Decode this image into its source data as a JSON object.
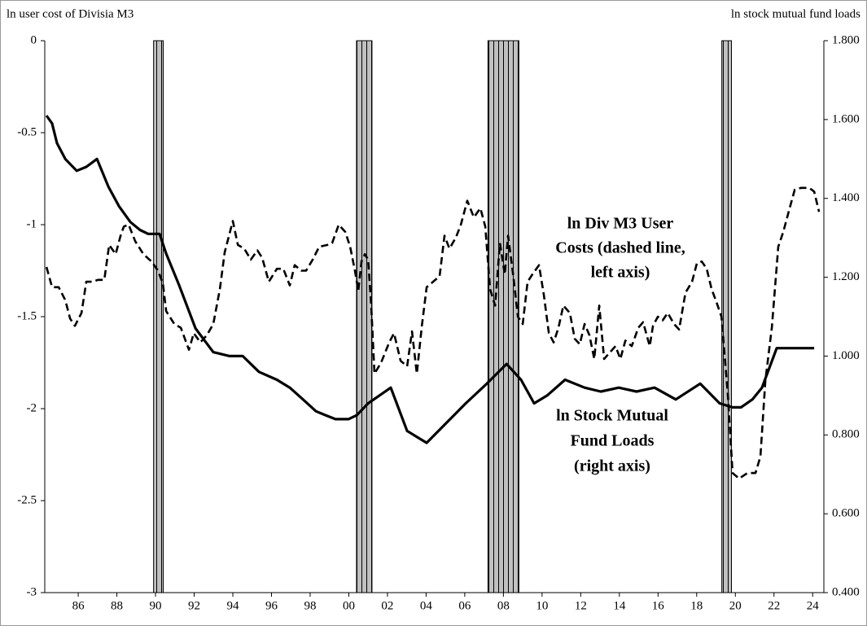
{
  "chart_data": {
    "type": "line",
    "y_label": "ln user cost of Divisia M3",
    "y2_label": "ln stock mutual fund loads",
    "xlim": [
      1984.27,
      2024.58
    ],
    "xticks": [
      {
        "value": 1986,
        "label": "86"
      },
      {
        "value": 1988,
        "label": "88"
      },
      {
        "value": 1990,
        "label": "90"
      },
      {
        "value": 1992,
        "label": "92"
      },
      {
        "value": 1994,
        "label": "94"
      },
      {
        "value": 1996,
        "label": "96"
      },
      {
        "value": 1998,
        "label": "98"
      },
      {
        "value": 2000,
        "label": "00"
      },
      {
        "value": 2002,
        "label": "02"
      },
      {
        "value": 2004,
        "label": "04"
      },
      {
        "value": 2006,
        "label": "06"
      },
      {
        "value": 2008,
        "label": "08"
      },
      {
        "value": 2010,
        "label": "10"
      },
      {
        "value": 2012,
        "label": "12"
      },
      {
        "value": 2014,
        "label": "14"
      },
      {
        "value": 2016,
        "label": "16"
      },
      {
        "value": 2018,
        "label": "18"
      },
      {
        "value": 2020,
        "label": "20"
      },
      {
        "value": 2022,
        "label": "22"
      },
      {
        "value": 2024,
        "label": "24"
      }
    ],
    "ylim": [
      -3,
      0
    ],
    "yticks": [
      0,
      -0.5,
      -1,
      -1.5,
      -2,
      -2.5,
      -3
    ],
    "y2lim": [
      0.4,
      1.8
    ],
    "y2ticks": [
      {
        "value": 1.8,
        "label": "1.800"
      },
      {
        "value": 1.6,
        "label": "1.600"
      },
      {
        "value": 1.4,
        "label": "1.400"
      },
      {
        "value": 1.2,
        "label": "1.200"
      },
      {
        "value": 1.0,
        "label": "1.000"
      },
      {
        "value": 0.8,
        "label": "0.800"
      },
      {
        "value": 0.6,
        "label": "0.600"
      },
      {
        "value": 0.4,
        "label": "0.400"
      }
    ],
    "shaded_periods": [
      [
        1989.9,
        1990.4
      ],
      [
        2000.4,
        2001.2
      ],
      [
        2007.2,
        2008.8
      ],
      [
        2019.3,
        2019.8
      ]
    ],
    "shade_color": "#c0c0c0",
    "series": [
      {
        "color": "#000000",
        "style": "dashed",
        "x": [
          1984.36,
          1984.65,
          1984.99,
          1985.33,
          1985.58,
          1985.83,
          1986.17,
          1986.42,
          1986.76,
          1987.01,
          1987.35,
          1987.6,
          1987.94,
          1988.19,
          1988.36,
          1988.61,
          1988.95,
          1989.37,
          1989.79,
          1990.13,
          1990.38,
          1990.55,
          1990.97,
          1991.31,
          1991.73,
          1991.98,
          1992.32,
          1992.66,
          1992.99,
          1993.33,
          1993.58,
          1994,
          1994.26,
          1994.59,
          1994.93,
          1995.27,
          1995.52,
          1995.86,
          1996.28,
          1996.61,
          1996.95,
          1997.2,
          1997.54,
          1997.79,
          1998.13,
          1998.47,
          1998.89,
          1999.14,
          1999.48,
          1999.82,
          2000.07,
          2000.32,
          2000.49,
          2000.66,
          2000.83,
          2001,
          2001.16,
          2001.33,
          2001.67,
          2002.09,
          2002.34,
          2002.68,
          2003.02,
          2003.27,
          2003.52,
          2003.78,
          2004.03,
          2004.36,
          2004.7,
          2004.95,
          2005.21,
          2005.54,
          2005.8,
          2006.13,
          2006.47,
          2006.81,
          2007.06,
          2007.31,
          2007.57,
          2007.82,
          2008.07,
          2008.24,
          2008.49,
          2008.75,
          2009,
          2009.25,
          2009.5,
          2009.84,
          2010.09,
          2010.35,
          2010.6,
          2010.85,
          2011.1,
          2011.44,
          2011.69,
          2011.95,
          2012.2,
          2012.45,
          2012.7,
          2012.96,
          2013.21,
          2013.46,
          2013.8,
          2014.05,
          2014.31,
          2014.64,
          2014.98,
          2015.23,
          2015.57,
          2015.74,
          2015.99,
          2016.24,
          2016.5,
          2016.83,
          2017.09,
          2017.42,
          2017.76,
          2018.01,
          2018.26,
          2018.52,
          2018.77,
          2019.02,
          2019.28,
          2019.61,
          2019.86,
          2020.2,
          2020.62,
          2021.04,
          2021.3,
          2021.55,
          2021.89,
          2022.22,
          2022.48,
          2022.81,
          2023.07,
          2023.4,
          2023.82,
          2024.08,
          2024.33
        ],
        "values": [
          -1.23,
          -1.34,
          -1.34,
          -1.41,
          -1.51,
          -1.55,
          -1.48,
          -1.31,
          -1.31,
          -1.3,
          -1.3,
          -1.11,
          -1.16,
          -1.06,
          -1.01,
          -1.0,
          -1.09,
          -1.16,
          -1.2,
          -1.25,
          -1.32,
          -1.47,
          -1.54,
          -1.56,
          -1.68,
          -1.59,
          -1.64,
          -1.6,
          -1.54,
          -1.35,
          -1.15,
          -0.98,
          -1.11,
          -1.13,
          -1.19,
          -1.14,
          -1.18,
          -1.31,
          -1.24,
          -1.24,
          -1.33,
          -1.22,
          -1.25,
          -1.25,
          -1.19,
          -1.12,
          -1.11,
          -1.1,
          -1.0,
          -1.04,
          -1.12,
          -1.25,
          -1.36,
          -1.2,
          -1.16,
          -1.19,
          -1.44,
          -1.81,
          -1.75,
          -1.64,
          -1.59,
          -1.74,
          -1.77,
          -1.58,
          -1.81,
          -1.55,
          -1.34,
          -1.31,
          -1.28,
          -1.06,
          -1.13,
          -1.07,
          -1.0,
          -0.87,
          -0.96,
          -0.91,
          -1.01,
          -1.35,
          -1.44,
          -1.1,
          -1.27,
          -1.06,
          -1.26,
          -1.5,
          -1.54,
          -1.31,
          -1.27,
          -1.22,
          -1.38,
          -1.59,
          -1.64,
          -1.56,
          -1.44,
          -1.48,
          -1.62,
          -1.65,
          -1.54,
          -1.6,
          -1.73,
          -1.44,
          -1.73,
          -1.7,
          -1.66,
          -1.73,
          -1.63,
          -1.66,
          -1.56,
          -1.53,
          -1.66,
          -1.55,
          -1.5,
          -1.52,
          -1.48,
          -1.54,
          -1.57,
          -1.37,
          -1.31,
          -1.21,
          -1.2,
          -1.24,
          -1.35,
          -1.42,
          -1.5,
          -1.92,
          -2.35,
          -2.38,
          -2.35,
          -2.35,
          -2.26,
          -1.85,
          -1.56,
          -1.12,
          -1.04,
          -0.91,
          -0.81,
          -0.8,
          -0.8,
          -0.82,
          -0.93
        ]
      },
      {
        "color": "#000000",
        "style": "solid",
        "axis": "y2",
        "x": [
          1984.36,
          1984.65,
          1984.9,
          1985.33,
          1985.92,
          1986.42,
          1986.97,
          1987.56,
          1988.11,
          1988.7,
          1989.2,
          1989.62,
          1990.21,
          1990.55,
          1991.22,
          1992.07,
          1992.99,
          1993.83,
          1994.51,
          1995.35,
          1996.28,
          1996.95,
          1997.63,
          1998.3,
          1998.8,
          1999.31,
          1999.98,
          2000.41,
          2001,
          2001.58,
          2002.17,
          2003.02,
          2004.03,
          2005.04,
          2006.05,
          2007.14,
          2008.16,
          2008.91,
          2009.59,
          2010.26,
          2011.19,
          2012.2,
          2013.04,
          2013.97,
          2014.89,
          2015.82,
          2016.92,
          2018.18,
          2019.19,
          2019.86,
          2020.29,
          2020.88,
          2021.38,
          2022.14,
          2022.9,
          2023.82,
          2024.08
        ],
        "values": [
          1.61,
          1.59,
          1.54,
          1.5,
          1.47,
          1.48,
          1.5,
          1.43,
          1.38,
          1.34,
          1.32,
          1.31,
          1.31,
          1.26,
          1.18,
          1.07,
          1.01,
          1.0,
          1.0,
          0.96,
          0.94,
          0.92,
          0.89,
          0.86,
          0.85,
          0.84,
          0.84,
          0.85,
          0.88,
          0.9,
          0.92,
          0.81,
          0.78,
          0.83,
          0.88,
          0.93,
          0.98,
          0.94,
          0.88,
          0.9,
          0.94,
          0.92,
          0.91,
          0.92,
          0.91,
          0.92,
          0.89,
          0.93,
          0.88,
          0.87,
          0.87,
          0.89,
          0.92,
          1.02,
          1.02,
          1.02,
          1.02
        ]
      }
    ],
    "annotations": [
      {
        "lines": [
          "ln Div M3 User",
          "Costs (dashed line,",
          "left axis)"
        ]
      },
      {
        "lines": [
          "ln Stock Mutual",
          "Fund Loads",
          "(right axis)"
        ]
      }
    ]
  }
}
